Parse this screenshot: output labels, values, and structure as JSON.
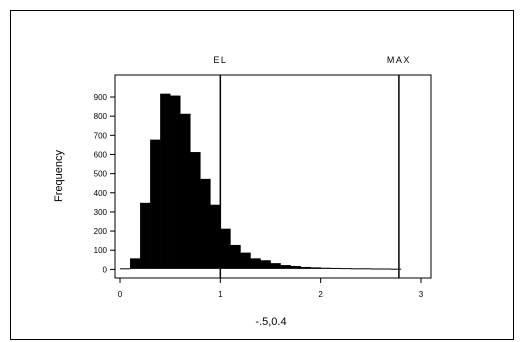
{
  "chart_data": {
    "type": "bar",
    "subtype": "histogram",
    "xlabel": "-.5,0.4",
    "ylabel": "Frequency",
    "xlim": [
      -0.05,
      3.1
    ],
    "ylim": [
      -45,
      1015
    ],
    "x_ticks": [
      0,
      1,
      2,
      3
    ],
    "y_ticks": [
      0,
      100,
      200,
      300,
      400,
      500,
      600,
      700,
      800,
      900
    ],
    "bin_width": 0.1,
    "bins_start": [
      0.0,
      0.1,
      0.2,
      0.3,
      0.4,
      0.5,
      0.6,
      0.7,
      0.8,
      0.9,
      1.0,
      1.1,
      1.2,
      1.3,
      1.4,
      1.5,
      1.6,
      1.7,
      1.8,
      1.9,
      2.0,
      2.1,
      2.2,
      2.3,
      2.4,
      2.5,
      2.6,
      2.7
    ],
    "values": [
      3,
      55,
      345,
      675,
      915,
      905,
      810,
      610,
      470,
      335,
      210,
      125,
      85,
      55,
      45,
      30,
      20,
      15,
      10,
      8,
      6,
      5,
      4,
      3,
      3,
      2,
      2,
      1
    ],
    "reference_lines": [
      {
        "label": "EL",
        "x": 1.0
      },
      {
        "label": "MAX",
        "x": 2.78
      }
    ],
    "grid": false,
    "color": "#000000"
  }
}
